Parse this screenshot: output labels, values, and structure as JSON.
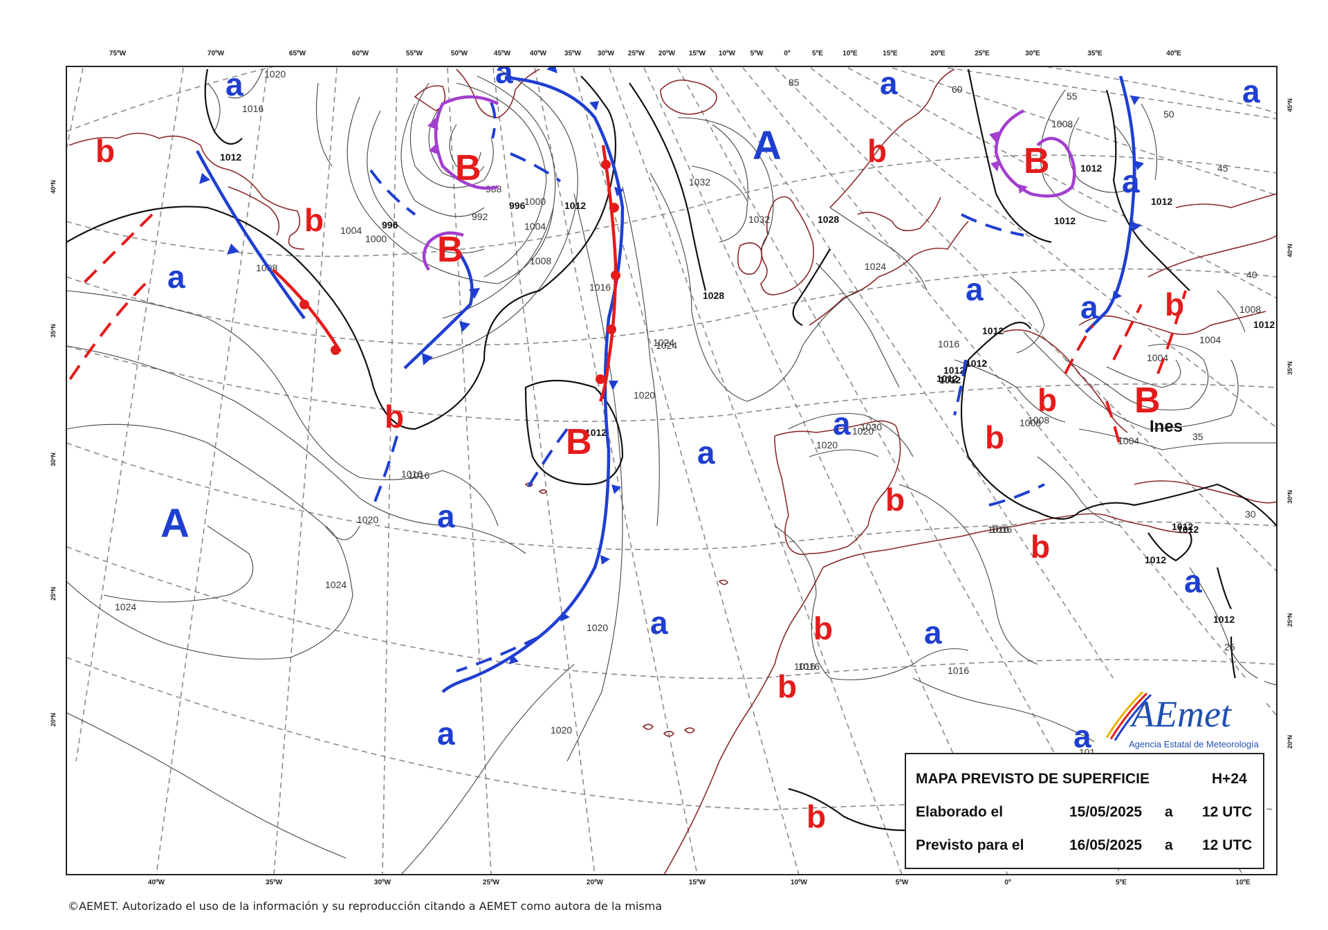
{
  "top_longitudes": [
    "75ºW",
    "70ºW",
    "65ºW",
    "60ºW",
    "55ºW",
    "50ºW",
    "45ºW",
    "40ºW",
    "35ºW",
    "30ºW",
    "25ºW",
    "20ºW",
    "15ºW",
    "10ºW",
    "5ºW",
    "0º",
    "5ºE",
    "10ºE",
    "15ºE",
    "20ºE",
    "25ºE",
    "30ºE",
    "35ºE",
    "40ºE"
  ],
  "bottom_longitudes": [
    "40ºW",
    "35ºW",
    "30ºW",
    "25ºW",
    "20ºW",
    "15ºW",
    "10ºW",
    "5ºW",
    "0º",
    "5ºE",
    "10ºE"
  ],
  "left_latitudes": [
    "40ºN",
    "35ºN",
    "30ºN",
    "25ºN",
    "20ºN"
  ],
  "right_latitudes": [
    "45ºN",
    "40ºN",
    "35ºN",
    "30ºN",
    "25ºN",
    "20ºN"
  ],
  "pressure_centers": [
    {
      "letter": "A",
      "kind": "high"
    },
    {
      "letter": "A",
      "kind": "high"
    },
    {
      "letter": "B",
      "kind": "low"
    },
    {
      "letter": "B",
      "kind": "low"
    },
    {
      "letter": "B",
      "kind": "low"
    },
    {
      "letter": "B",
      "kind": "low"
    },
    {
      "letter": "B",
      "kind": "low"
    }
  ],
  "storm_name": "Ines",
  "isobar_labels": [
    "1020",
    "1016",
    "1012",
    "1008",
    "1004",
    "1000",
    "996",
    "996",
    "992",
    "988",
    "1000",
    "1004",
    "1008",
    "1012",
    "1016",
    "1020",
    "1024",
    "1024",
    "1024",
    "1020",
    "1016",
    "1020",
    "1024",
    "1028",
    "1028",
    "1032",
    "1032",
    "1024",
    "1016",
    "1012",
    "1012",
    "1012",
    "1012",
    "1008",
    "1004",
    "1004",
    "1004",
    "1008",
    "1012",
    "1012",
    "1012",
    "1012",
    "1012",
    "1012",
    "1016",
    "1016",
    "1016",
    "1016",
    "1016",
    "1020",
    "1020",
    "1020",
    "1012",
    "1008",
    "1008",
    "1012",
    "1012",
    "1016",
    "1016",
    "1020",
    "1012"
  ],
  "small_labels": [
    "85",
    "60",
    "55",
    "50",
    "45",
    "40",
    "35",
    "30",
    "25",
    "101",
    "1",
    "1016",
    "1012"
  ],
  "info": {
    "title": "MAPA PREVISTO DE SUPERFICIE",
    "horizon": "H+24",
    "elaborated_label": "Elaborado el",
    "elaborated_date": "15/05/2025",
    "elaborated_at": "a",
    "elaborated_time": "12 UTC",
    "valid_label": "Previsto para el",
    "valid_date": "16/05/2025",
    "valid_at": "a",
    "valid_time": "12 UTC"
  },
  "logo": {
    "name": "AEmet",
    "subtitle": "Agencia Estatal de Meteorología"
  },
  "copyright": "©AEMET. Autorizado el uso de la información y su reproducción citando a AEMET como autora de la misma",
  "colors": {
    "high": "#1f3fd1",
    "low": "#e41b1b",
    "warm_front": "#e41b1b",
    "cold_front": "#1f3fd1",
    "occluded_front": "#a23fcf",
    "coast": "#8b2a2a"
  }
}
